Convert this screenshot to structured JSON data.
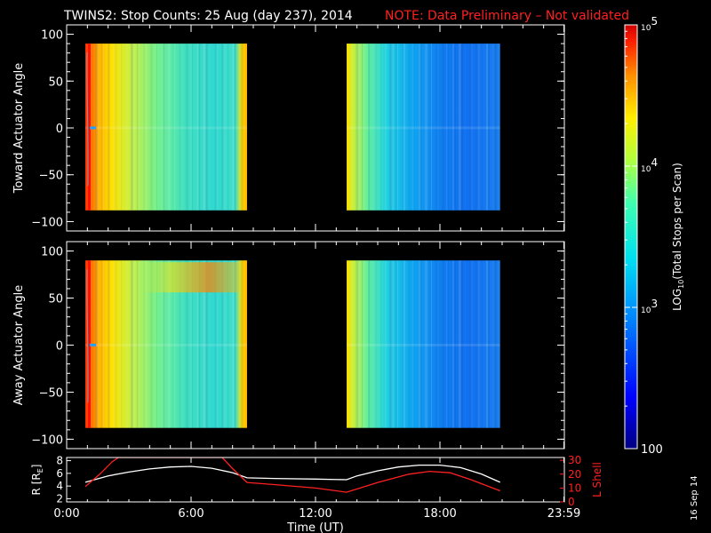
{
  "title": "TWINS2: Stop Counts: 25 Aug (day 237), 2014",
  "note": "NOTE: Data Preliminary – Not validated",
  "date_stamp": "16 Sep 14",
  "colors": {
    "background": "#000000",
    "text": "#ffffff",
    "note": "#ff2020",
    "lshell": "#ff2020",
    "radius": "#ffffff"
  },
  "chart_data": [
    {
      "type": "heatmap",
      "name": "toward-panel",
      "ylabel": "Toward Actuator Angle",
      "ylim": [
        -110,
        110
      ],
      "yticks": [
        "100",
        "50",
        "0",
        "−50",
        "−100"
      ],
      "ytick_values": [
        100,
        50,
        0,
        -50,
        -100
      ],
      "xlim": [
        0,
        24
      ],
      "data_blocks": [
        {
          "start_hr": 0.9,
          "end_hr": 8.7,
          "angle_min": -88,
          "angle_max": 90
        },
        {
          "start_hr": 13.5,
          "end_hr": 20.9,
          "angle_min": -88,
          "angle_max": 90
        }
      ]
    },
    {
      "type": "heatmap",
      "name": "away-panel",
      "ylabel": "Away Actuator Angle",
      "ylim": [
        -110,
        110
      ],
      "yticks": [
        "100",
        "50",
        "0",
        "−50",
        "−100"
      ],
      "ytick_values": [
        100,
        50,
        0,
        -50,
        -100
      ],
      "xlim": [
        0,
        24
      ],
      "data_blocks": [
        {
          "start_hr": 0.9,
          "end_hr": 8.7,
          "angle_min": -88,
          "angle_max": 90
        },
        {
          "start_hr": 13.5,
          "end_hr": 20.9,
          "angle_min": -88,
          "angle_max": 90
        }
      ]
    },
    {
      "type": "line",
      "name": "orbit-panel",
      "xlabel": "Time (UT)",
      "xlim": [
        0,
        24
      ],
      "xticks": [
        "0:00",
        "6:00",
        "12:00",
        "18:00",
        "23:59"
      ],
      "xtick_values": [
        0,
        6,
        12,
        18,
        23.98
      ],
      "ylabel_left": "R [R",
      "ylabel_left_sub": "E",
      "ylabel_left_end": "]",
      "ylim_left": [
        1.5,
        8.5
      ],
      "yticks_left": [
        "8",
        "6",
        "4",
        "2"
      ],
      "ytick_left_values": [
        8,
        6,
        4,
        2
      ],
      "ylabel_right": "L Shell",
      "ylim_right": [
        0,
        32
      ],
      "yticks_right": [
        "30",
        "20",
        "10",
        "0"
      ],
      "ytick_right_values": [
        30,
        20,
        10,
        0
      ],
      "series": [
        {
          "axis": "left",
          "color": "#ffffff",
          "x": [
            0.9,
            2,
            3,
            4,
            5,
            6,
            7,
            8,
            8.7,
            10,
            12,
            13.5,
            14,
            15,
            16,
            17,
            18,
            19,
            20,
            20.9
          ],
          "y": [
            4.6,
            5.6,
            6.2,
            6.7,
            7.0,
            7.1,
            6.8,
            6.1,
            5.3,
            5.2,
            5.1,
            5.0,
            5.6,
            6.4,
            7.0,
            7.3,
            7.3,
            6.9,
            5.9,
            4.6
          ]
        },
        {
          "axis": "right",
          "color": "#ff2020",
          "x": [
            0.9,
            1.6,
            2.2,
            2.5,
            7.5,
            8.0,
            8.7,
            10,
            12,
            13.5,
            15,
            16.5,
            17.5,
            18.5,
            19.5,
            20.9
          ],
          "y": [
            11,
            20,
            29,
            32,
            32,
            24,
            14,
            12.5,
            10,
            7,
            14,
            20,
            22,
            21,
            16,
            8
          ]
        }
      ]
    }
  ],
  "colorbar": {
    "label": "LOG",
    "label_sub": "10",
    "label_end": "(Total Stops per Scan)",
    "scale": "log",
    "range": [
      100,
      100000
    ],
    "ticks": [
      {
        "value": 100000,
        "base": "10",
        "exp": "5"
      },
      {
        "value": 10000,
        "base": "10",
        "exp": "4"
      },
      {
        "value": 1000,
        "base": "10",
        "exp": "3"
      },
      {
        "value": 100,
        "base": "100",
        "exp": ""
      }
    ]
  }
}
